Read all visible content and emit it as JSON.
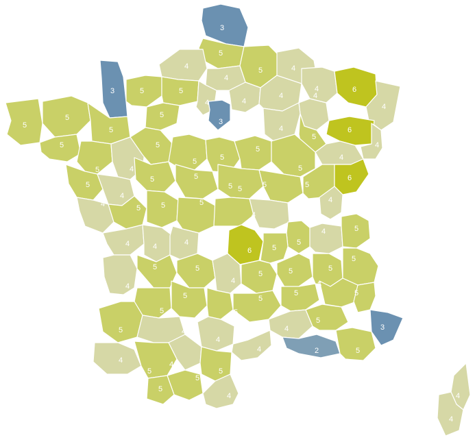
{
  "legend_colors": {
    "2": "#7f9fb5",
    "3": "#6b91b1",
    "4": "#d6d8a6",
    "5": "#c9d067",
    "6": "#bfc41f"
  },
  "departments": [
    {
      "v": "3"
    },
    {
      "v": "5"
    },
    {
      "v": "5"
    },
    {
      "v": "4"
    },
    {
      "v": "4"
    },
    {
      "v": "4"
    },
    {
      "v": "4"
    },
    {
      "v": "6"
    },
    {
      "v": "4"
    },
    {
      "v": "3"
    },
    {
      "v": "5"
    },
    {
      "v": "5"
    },
    {
      "v": "4"
    },
    {
      "v": "4"
    },
    {
      "v": "4"
    },
    {
      "v": "4"
    },
    {
      "v": "5"
    },
    {
      "v": "5"
    },
    {
      "v": "5"
    },
    {
      "v": "5"
    },
    {
      "v": "3"
    },
    {
      "v": "4"
    },
    {
      "v": "5"
    },
    {
      "v": "6"
    },
    {
      "v": "4"
    },
    {
      "v": "5"
    },
    {
      "v": "5"
    },
    {
      "v": "4"
    },
    {
      "v": "5"
    },
    {
      "v": "5"
    },
    {
      "v": "5"
    },
    {
      "v": "5"
    },
    {
      "v": "5"
    },
    {
      "v": "4"
    },
    {
      "v": "5"
    },
    {
      "v": "4"
    },
    {
      "v": "5"
    },
    {
      "v": "5"
    },
    {
      "v": "5"
    },
    {
      "v": "5"
    },
    {
      "v": "5"
    },
    {
      "v": "6"
    },
    {
      "v": "4"
    },
    {
      "v": "4"
    },
    {
      "v": "5"
    },
    {
      "v": "5"
    },
    {
      "v": "5"
    },
    {
      "v": "5"
    },
    {
      "v": "4"
    },
    {
      "v": "4"
    },
    {
      "v": "4"
    },
    {
      "v": "4"
    },
    {
      "v": "5"
    },
    {
      "v": "6"
    },
    {
      "v": "5"
    },
    {
      "v": "4"
    },
    {
      "v": "5"
    },
    {
      "v": "4"
    },
    {
      "v": "5"
    },
    {
      "v": "5"
    },
    {
      "v": "4"
    },
    {
      "v": "5"
    },
    {
      "v": "5"
    },
    {
      "v": "5"
    },
    {
      "v": "5"
    },
    {
      "v": "5"
    },
    {
      "v": "5"
    },
    {
      "v": "5"
    },
    {
      "v": "5"
    },
    {
      "v": "5"
    },
    {
      "v": "5"
    },
    {
      "v": "5"
    },
    {
      "v": "5"
    },
    {
      "v": "4"
    },
    {
      "v": "4"
    },
    {
      "v": "4"
    },
    {
      "v": "5"
    },
    {
      "v": "3"
    },
    {
      "v": "4"
    },
    {
      "v": "5"
    },
    {
      "v": "4"
    },
    {
      "v": "4"
    },
    {
      "v": "2"
    },
    {
      "v": "5"
    },
    {
      "v": "5"
    },
    {
      "v": "5"
    },
    {
      "v": "5"
    },
    {
      "v": "4"
    },
    {
      "v": "4"
    },
    {
      "v": "4"
    }
  ]
}
